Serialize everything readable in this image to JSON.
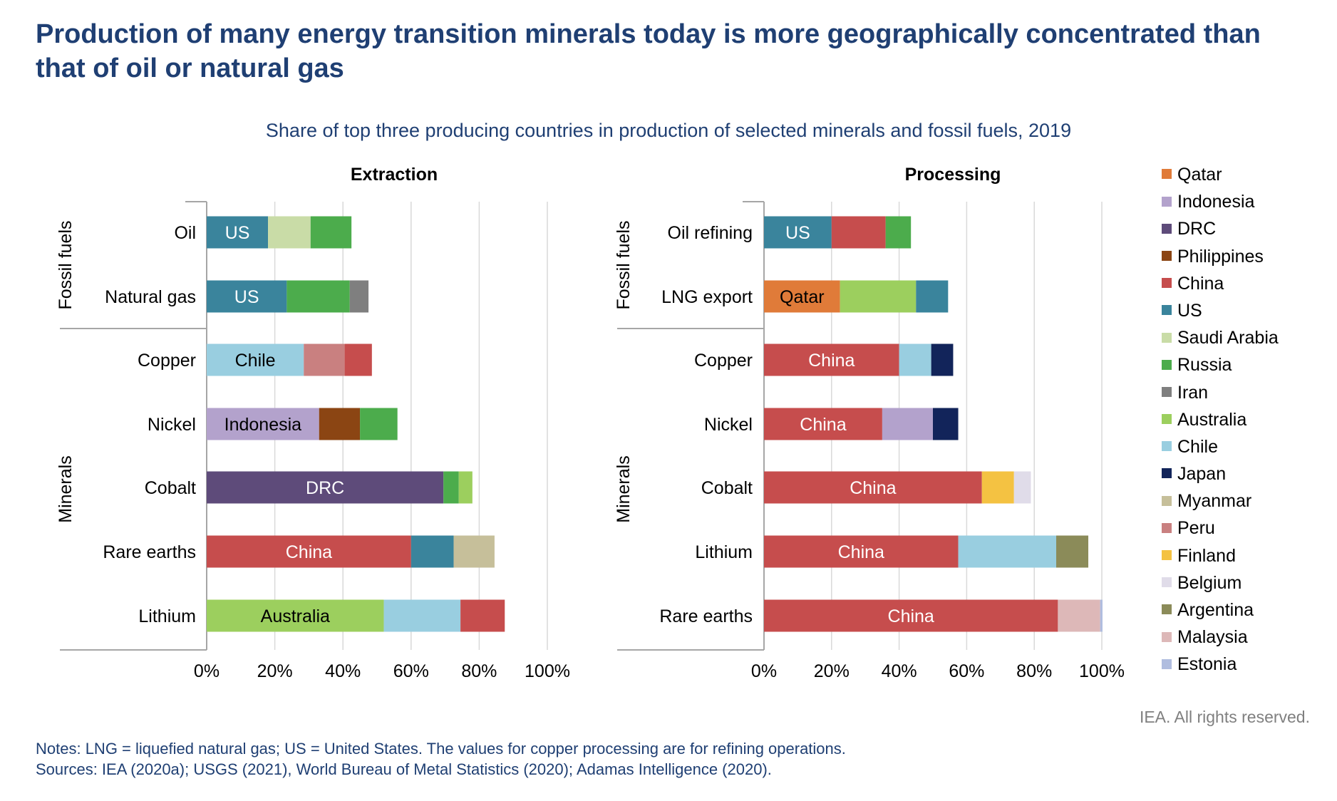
{
  "title": "Production of many energy transition minerals today is more geographically concentrated than that of oil or natural gas",
  "subtitle": "Share of top three producing countries in production of selected minerals and fossil fuels, 2019",
  "copyright": "IEA. All rights reserved.",
  "notes": "Notes: LNG = liquefied natural gas; US = United States. The values for copper processing are for refining operations.",
  "sources": "Sources: IEA (2020a); USGS (2021), World Bureau of Metal Statistics (2020); Adamas Intelligence (2020).",
  "legend": [
    {
      "name": "Qatar",
      "color": "#e07b39"
    },
    {
      "name": "Indonesia",
      "color": "#b3a2cc"
    },
    {
      "name": "DRC",
      "color": "#5e4b7a"
    },
    {
      "name": "Philippines",
      "color": "#8b4513"
    },
    {
      "name": "China",
      "color": "#c64d4d"
    },
    {
      "name": "US",
      "color": "#3a849c"
    },
    {
      "name": "Saudi Arabia",
      "color": "#c9dca7"
    },
    {
      "name": "Russia",
      "color": "#4cac4c"
    },
    {
      "name": "Iran",
      "color": "#7f7f7f"
    },
    {
      "name": "Australia",
      "color": "#9ccf5e"
    },
    {
      "name": "Chile",
      "color": "#99cee0"
    },
    {
      "name": "Japan",
      "color": "#12245a"
    },
    {
      "name": "Myanmar",
      "color": "#c6bf9a"
    },
    {
      "name": "Peru",
      "color": "#c98080"
    },
    {
      "name": "Finland",
      "color": "#f4c242"
    },
    {
      "name": "Belgium",
      "color": "#e0dce9"
    },
    {
      "name": "Argentina",
      "color": "#8b8b59"
    },
    {
      "name": "Malaysia",
      "color": "#ddb8b8"
    },
    {
      "name": "Estonia",
      "color": "#b0bddf"
    }
  ],
  "chart_data": [
    {
      "type": "bar",
      "orientation": "horizontal",
      "stacked": true,
      "title": "Extraction",
      "xlim": [
        0,
        100
      ],
      "xticks": [
        "0%",
        "20%",
        "40%",
        "60%",
        "80%",
        "100%"
      ],
      "grid": true,
      "groups": [
        {
          "label": "Fossil fuels",
          "categories": [
            "Oil",
            "Natural gas"
          ]
        },
        {
          "label": "Minerals",
          "categories": [
            "Copper",
            "Nickel",
            "Cobalt",
            "Rare earths",
            "Lithium"
          ]
        }
      ],
      "bars": [
        {
          "category": "Oil",
          "segments": [
            {
              "country": "US",
              "value": 18,
              "label": "US"
            },
            {
              "country": "Saudi Arabia",
              "value": 12.5
            },
            {
              "country": "Russia",
              "value": 12
            }
          ]
        },
        {
          "category": "Natural gas",
          "segments": [
            {
              "country": "US",
              "value": 23.5,
              "label": "US"
            },
            {
              "country": "Russia",
              "value": 18.5
            },
            {
              "country": "Iran",
              "value": 5.5
            }
          ]
        },
        {
          "category": "Copper",
          "segments": [
            {
              "country": "Chile",
              "value": 28.5,
              "label": "Chile"
            },
            {
              "country": "Peru",
              "value": 12
            },
            {
              "country": "China",
              "value": 8
            }
          ]
        },
        {
          "category": "Nickel",
          "segments": [
            {
              "country": "Indonesia",
              "value": 33,
              "label": "Indonesia"
            },
            {
              "country": "Philippines",
              "value": 12
            },
            {
              "country": "Russia",
              "value": 11
            }
          ]
        },
        {
          "category": "Cobalt",
          "segments": [
            {
              "country": "DRC",
              "value": 69.5,
              "label": "DRC"
            },
            {
              "country": "Russia",
              "value": 4.5
            },
            {
              "country": "Australia",
              "value": 4
            }
          ]
        },
        {
          "category": "Rare earths",
          "segments": [
            {
              "country": "China",
              "value": 60,
              "label": "China"
            },
            {
              "country": "US",
              "value": 12.5
            },
            {
              "country": "Myanmar",
              "value": 12
            }
          ]
        },
        {
          "category": "Lithium",
          "segments": [
            {
              "country": "Australia",
              "value": 52,
              "label": "Australia"
            },
            {
              "country": "Chile",
              "value": 22.5
            },
            {
              "country": "China",
              "value": 13
            }
          ]
        }
      ]
    },
    {
      "type": "bar",
      "orientation": "horizontal",
      "stacked": true,
      "title": "Processing",
      "xlim": [
        0,
        100
      ],
      "xticks": [
        "0%",
        "20%",
        "40%",
        "60%",
        "80%",
        "100%"
      ],
      "grid": true,
      "groups": [
        {
          "label": "Fossil fuels",
          "categories": [
            "Oil refining",
            "LNG export"
          ]
        },
        {
          "label": "Minerals",
          "categories": [
            "Copper",
            "Nickel",
            "Cobalt",
            "Lithium",
            "Rare earths"
          ]
        }
      ],
      "bars": [
        {
          "category": "Oil refining",
          "segments": [
            {
              "country": "US",
              "value": 20,
              "label": "US"
            },
            {
              "country": "China",
              "value": 16
            },
            {
              "country": "Russia",
              "value": 7.5
            }
          ]
        },
        {
          "category": "LNG export",
          "segments": [
            {
              "country": "Qatar",
              "value": 22.5,
              "label": "Qatar"
            },
            {
              "country": "Australia",
              "value": 22.5
            },
            {
              "country": "US",
              "value": 9.5
            }
          ]
        },
        {
          "category": "Copper",
          "segments": [
            {
              "country": "China",
              "value": 40,
              "label": "China"
            },
            {
              "country": "Chile",
              "value": 9.5
            },
            {
              "country": "Japan",
              "value": 6.5
            }
          ]
        },
        {
          "category": "Nickel",
          "segments": [
            {
              "country": "China",
              "value": 35,
              "label": "China"
            },
            {
              "country": "Indonesia",
              "value": 15
            },
            {
              "country": "Japan",
              "value": 7.5
            }
          ]
        },
        {
          "category": "Cobalt",
          "segments": [
            {
              "country": "China",
              "value": 64.5,
              "label": "China"
            },
            {
              "country": "Finland",
              "value": 9.5
            },
            {
              "country": "Belgium",
              "value": 5
            }
          ]
        },
        {
          "category": "Lithium",
          "segments": [
            {
              "country": "China",
              "value": 57.5,
              "label": "China"
            },
            {
              "country": "Chile",
              "value": 29
            },
            {
              "country": "Argentina",
              "value": 9.5
            }
          ]
        },
        {
          "category": "Rare earths",
          "segments": [
            {
              "country": "China",
              "value": 87,
              "label": "China"
            },
            {
              "country": "Malaysia",
              "value": 12.5
            },
            {
              "country": "Estonia",
              "value": 0.7
            }
          ]
        }
      ]
    }
  ]
}
